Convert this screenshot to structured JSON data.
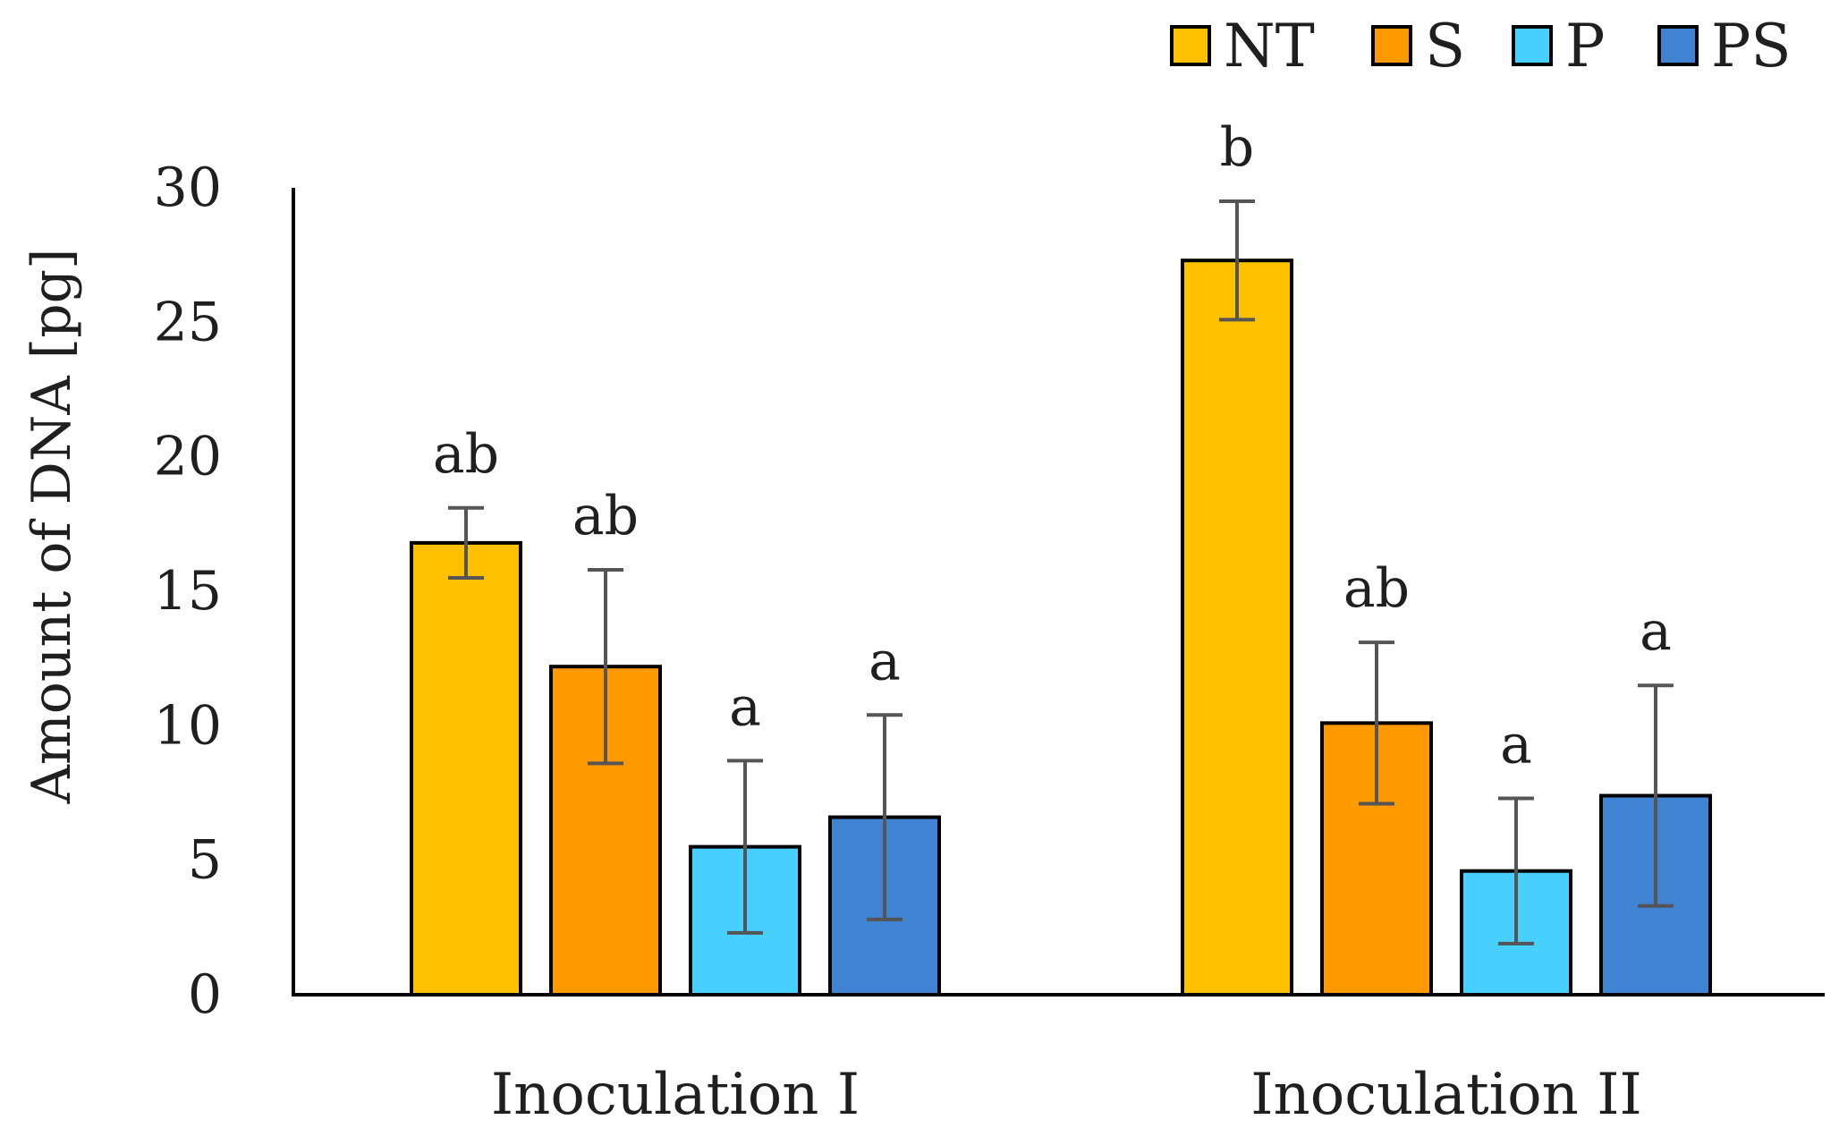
{
  "chart_data": {
    "type": "bar",
    "title": "",
    "xlabel": "",
    "ylabel": "Amount of DNA  [pg]",
    "ylim": [
      0,
      30
    ],
    "yticks": [
      0,
      5,
      10,
      15,
      20,
      25,
      30
    ],
    "grid": false,
    "legend_position": "top-right",
    "categories": [
      "Inoculation I",
      "Inoculation II"
    ],
    "series": [
      {
        "name": "NT",
        "color": "#FFC000",
        "values": [
          16.8,
          27.3
        ],
        "errors": [
          1.3,
          2.2
        ],
        "significance": [
          "ab",
          "b"
        ]
      },
      {
        "name": "S",
        "color": "#FF9900",
        "values": [
          12.2,
          10.1
        ],
        "errors": [
          3.6,
          3.0
        ],
        "significance": [
          "ab",
          "ab"
        ]
      },
      {
        "name": "P",
        "color": "#47CFFF",
        "values": [
          5.5,
          4.6
        ],
        "errors": [
          3.2,
          2.7
        ],
        "significance": [
          "a",
          "a"
        ]
      },
      {
        "name": "PS",
        "color": "#4183D3",
        "values": [
          6.6,
          7.4
        ],
        "errors": [
          3.8,
          4.1
        ],
        "significance": [
          "a",
          "a"
        ]
      }
    ]
  }
}
